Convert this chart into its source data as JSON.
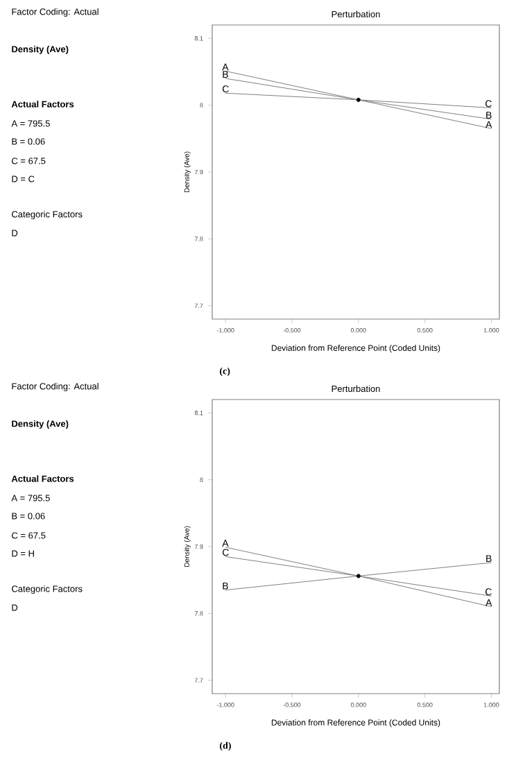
{
  "chart_data": [
    {
      "type": "other",
      "title": "Factor Coding: Actual",
      "subtitle": "Density (Ave)",
      "annotations": [
        "**Actual Factors**",
        "A = 795.5",
        "B = 0.06",
        "C = 67.5",
        "D = C",
        "Categoric Factors",
        "D"
      ]
    },
    {
      "type": "line",
      "title": "Perturbation",
      "xlabel": "Deviation from Reference Point (Coded Units)",
      "ylabel": "Density (Ave)",
      "annotations": [
        "(c)"
      ],
      "xlim": [
        -1.1,
        1.06
      ],
      "ylim": [
        7.68,
        8.12
      ],
      "xticks": [
        {
          "value": -1,
          "label": "-1.000"
        },
        {
          "value": -0.5,
          "label": "-0.500"
        },
        {
          "value": 0,
          "label": "0.000"
        },
        {
          "value": 0.5,
          "label": "0.500"
        },
        {
          "value": 1,
          "label": "1.000"
        }
      ],
      "yticks": [
        7.7,
        7.8,
        7.9,
        8,
        8.1
      ],
      "series": [
        {
          "type": "line",
          "name": "A",
          "color": "#808080",
          "x": [
            -1,
            0,
            1
          ],
          "values": [
            8.051,
            8.008,
            7.965
          ]
        },
        {
          "type": "line",
          "name": "B",
          "color": "#808080",
          "x": [
            -1,
            0,
            1
          ],
          "values": [
            8.04,
            8.008,
            7.979
          ]
        },
        {
          "type": "line",
          "name": "C",
          "color": "#808080",
          "x": [
            -1,
            0,
            1
          ],
          "values": [
            8.018,
            8.008,
            7.996
          ]
        },
        {
          "type": "scatter",
          "color": "#000000",
          "marker": "circle",
          "x": [
            0
          ],
          "values": [
            8.008
          ]
        }
      ]
    },
    {
      "type": "other",
      "title": "Factor Coding: Actual",
      "subtitle": "Density (Ave)",
      "annotations": [
        "**Actual Factors**",
        "A = 795.5",
        "B = 0.06",
        "C = 67.5",
        "D = H",
        "Categoric Factors",
        "D"
      ]
    },
    {
      "type": "line",
      "title": "Perturbation",
      "xlabel": "Deviation from Reference Point (Coded Units)",
      "ylabel": "Density (Ave)",
      "annotations": [
        "(d)"
      ],
      "xlim": [
        -1.1,
        1.06
      ],
      "ylim": [
        7.68,
        8.12
      ],
      "xticks": [
        {
          "value": -1,
          "label": "-1.000"
        },
        {
          "value": -0.5,
          "label": "-0.500"
        },
        {
          "value": 0,
          "label": "0.000"
        },
        {
          "value": 0.5,
          "label": "0.500"
        },
        {
          "value": 1,
          "label": "1.000"
        }
      ],
      "yticks": [
        7.7,
        7.8,
        7.9,
        8,
        8.1
      ],
      "series": [
        {
          "type": "line",
          "name": "A",
          "color": "#808080",
          "x": [
            -1,
            0,
            1
          ],
          "values": [
            7.899,
            7.856,
            7.81
          ]
        },
        {
          "type": "line",
          "name": "B",
          "color": "#808080",
          "x": [
            -1,
            0,
            1
          ],
          "values": [
            7.835,
            7.856,
            7.876
          ]
        },
        {
          "type": "line",
          "name": "C",
          "color": "#808080",
          "x": [
            -1,
            0,
            1
          ],
          "values": [
            7.885,
            7.856,
            7.826
          ]
        },
        {
          "type": "scatter",
          "color": "#000000",
          "marker": "circle",
          "x": [
            0
          ],
          "values": [
            7.856
          ]
        }
      ]
    }
  ]
}
